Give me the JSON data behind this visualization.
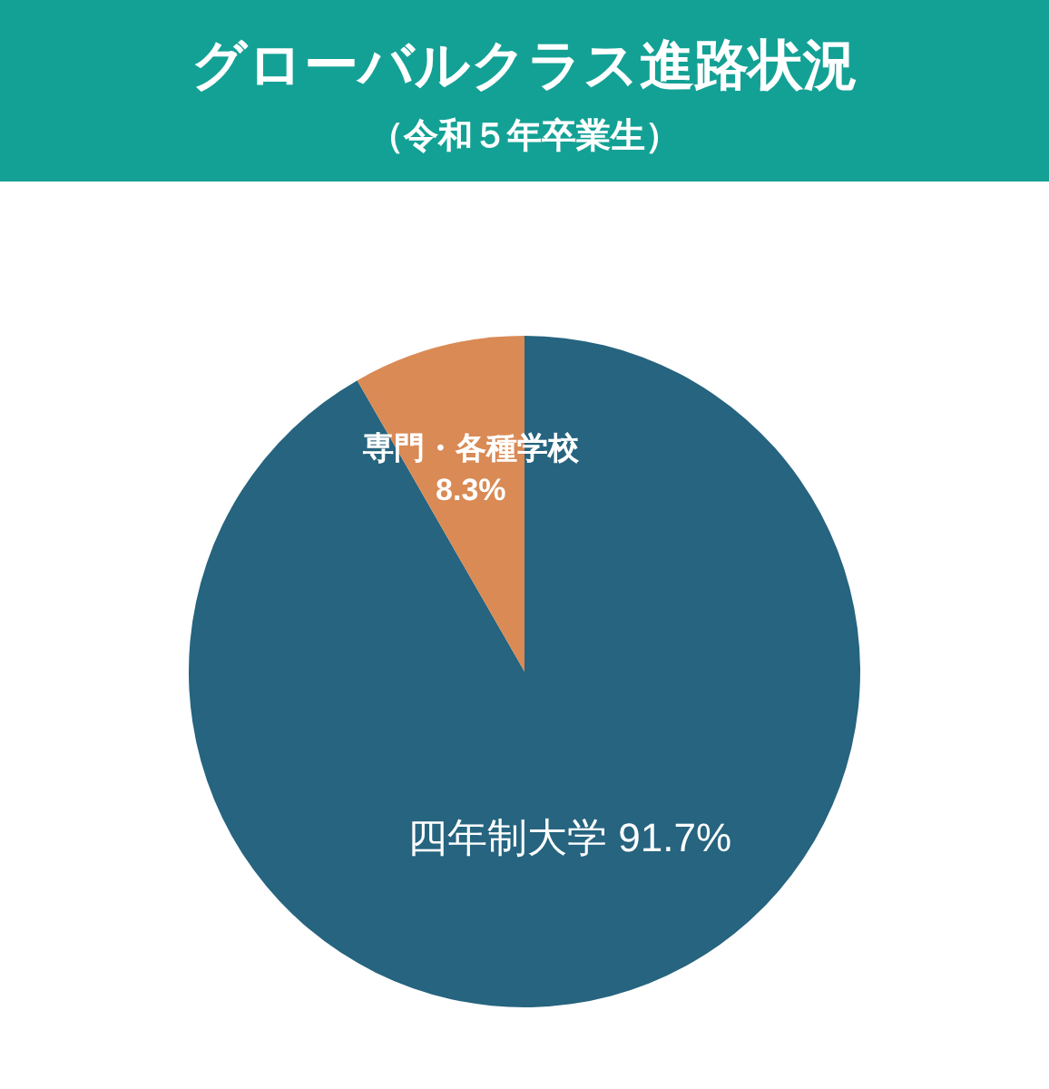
{
  "chart_data": {
    "type": "pie",
    "title": "グローバルクラス進路状況",
    "subtitle": "（令和５年卒業生）",
    "categories": [
      "四年制大学",
      "専門・各種学校"
    ],
    "values": [
      91.7,
      8.3
    ],
    "value_labels": [
      "91.7%",
      "8.3%"
    ],
    "colors": [
      "#26647f",
      "#d98a55"
    ]
  }
}
